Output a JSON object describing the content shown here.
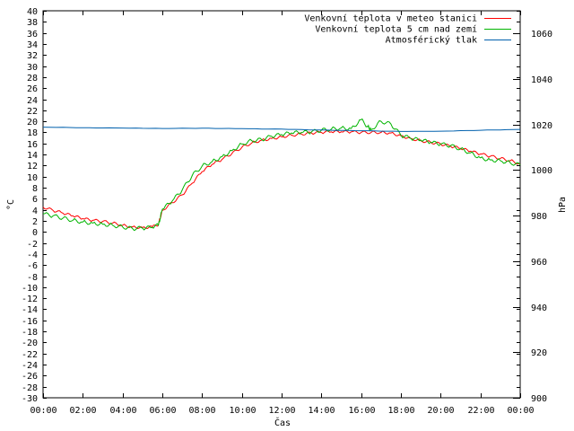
{
  "chart_data": {
    "type": "line",
    "xlabel": "Čas",
    "ylabel": "°C",
    "y2label": "hPa",
    "x_ticks": [
      "00:00",
      "02:00",
      "04:00",
      "06:00",
      "08:00",
      "10:00",
      "12:00",
      "14:00",
      "16:00",
      "18:00",
      "20:00",
      "22:00",
      "00:00"
    ],
    "xlim_hours": [
      0,
      24
    ],
    "ylim": [
      -30,
      40
    ],
    "y_tick_step": 2,
    "y2lim": [
      900,
      1070
    ],
    "y2_ticks": [
      900,
      920,
      940,
      960,
      980,
      1000,
      1020,
      1040,
      1060
    ],
    "grid": false,
    "legend_position": "top-right",
    "series": [
      {
        "name": "Venkovní teplota v meteo stanici",
        "color": "#ff0000",
        "axis": "left",
        "x": [
          0,
          0.5,
          1,
          1.5,
          2,
          2.5,
          3,
          3.5,
          4,
          4.5,
          5,
          5.5,
          5.8,
          6,
          6.5,
          7,
          7.5,
          8,
          8.5,
          9,
          9.5,
          10,
          10.5,
          11,
          11.5,
          12,
          12.5,
          13,
          13.5,
          14,
          14.5,
          15,
          15.5,
          16,
          16.5,
          17,
          17.5,
          18,
          18.5,
          19,
          19.5,
          20,
          20.5,
          21,
          21.5,
          22,
          22.5,
          23,
          23.5,
          24
        ],
        "y": [
          4.5,
          3.9,
          3.4,
          2.9,
          2.4,
          2.1,
          1.9,
          1.6,
          1.2,
          0.9,
          0.8,
          0.9,
          1.3,
          3.9,
          5.3,
          6.7,
          8.8,
          10.9,
          12.2,
          13.1,
          14.2,
          15.3,
          16.1,
          16.6,
          16.9,
          17.2,
          17.5,
          17.7,
          17.9,
          18.0,
          18.1,
          18.1,
          18.1,
          18.0,
          18.0,
          18.0,
          17.9,
          17.4,
          16.9,
          16.5,
          16.2,
          15.9,
          15.5,
          15.1,
          14.6,
          14.1,
          13.7,
          13.3,
          12.9,
          12.3
        ]
      },
      {
        "name": "Venkovní teplota 5 cm nad zemí",
        "color": "#00b400",
        "axis": "left",
        "x": [
          0,
          0.5,
          1,
          1.5,
          2,
          2.5,
          3,
          3.5,
          4,
          4.5,
          5,
          5.5,
          5.8,
          6,
          6.5,
          7,
          7.5,
          8,
          8.5,
          9,
          9.5,
          10,
          10.5,
          11,
          11.5,
          12,
          12.5,
          13,
          13.5,
          14,
          14.5,
          15,
          15.5,
          16,
          16.3,
          16.5,
          17,
          17.5,
          18,
          18.5,
          19,
          19.5,
          20,
          20.5,
          21,
          21.5,
          22,
          22.5,
          23,
          23.5,
          24
        ],
        "y": [
          3.3,
          2.9,
          2.5,
          2.1,
          1.8,
          1.6,
          1.4,
          1.2,
          0.9,
          0.6,
          0.7,
          0.8,
          1.2,
          4.1,
          5.6,
          7.6,
          10.2,
          11.9,
          12.7,
          13.6,
          14.7,
          15.9,
          16.5,
          16.7,
          17.3,
          17.6,
          17.9,
          18.0,
          18.1,
          18.4,
          18.6,
          18.8,
          18.7,
          20.3,
          19.1,
          18.5,
          20.0,
          19.5,
          17.5,
          16.9,
          16.6,
          16.2,
          15.9,
          15.6,
          15.0,
          14.3,
          13.4,
          13.0,
          12.9,
          12.5,
          12.1
        ]
      },
      {
        "name": "Atmosférický tlak",
        "color": "#0060ad",
        "axis": "right",
        "x": [
          0,
          2,
          4,
          6,
          8,
          10,
          12,
          14,
          16,
          18,
          20,
          22,
          24
        ],
        "y": [
          1018.9,
          1018.6,
          1018.5,
          1018.3,
          1018.4,
          1018.2,
          1018.0,
          1017.6,
          1017.3,
          1017.0,
          1017.1,
          1017.5,
          1017.9
        ]
      }
    ]
  }
}
